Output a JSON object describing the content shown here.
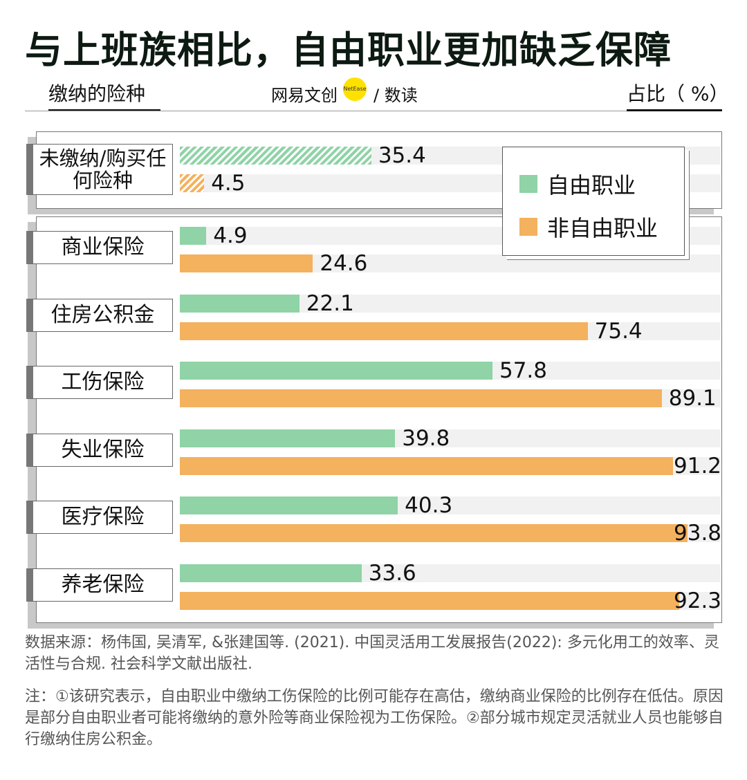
{
  "title": "与上班族相比，自由职业更加缺乏保障",
  "header": {
    "left_label": "缴纳的险种",
    "right_label": "占比（ %）",
    "brand_main": "网易文创",
    "brand_dot": "NetEase",
    "brand_tail": "/ 数读"
  },
  "colors": {
    "free": "#8fd3a6",
    "nonfree": "#f4b15e"
  },
  "chart_data": {
    "type": "bar",
    "orientation": "horizontal",
    "xlabel": "缴纳的险种",
    "ylabel": "占比（ %）",
    "xlim": [
      0,
      100
    ],
    "legend_position": "top-right",
    "grid": false,
    "categories": [
      "未缴纳/购买任何险种",
      "商业保险",
      "住房公积金",
      "工伤保险",
      "失业保险",
      "医疗保险",
      "养老保险"
    ],
    "series": [
      {
        "name": "自由职业",
        "values": [
          35.4,
          4.9,
          22.1,
          57.8,
          39.8,
          40.3,
          33.6
        ]
      },
      {
        "name": "非自由职业",
        "values": [
          4.5,
          24.6,
          75.4,
          89.1,
          91.2,
          93.8,
          92.3
        ]
      }
    ],
    "value_labels": {
      "free": [
        "35.4",
        "4.9",
        "22.1",
        "57.8",
        "39.8",
        "40.3",
        "33.6"
      ],
      "nonfree": [
        "4.5",
        "24.6",
        "75.4",
        "89.1",
        "91.2",
        "93.8",
        "92.3"
      ]
    }
  },
  "notes": {
    "source": "数据来源：杨伟国, 吴清军, &张建国等. (2021). 中国灵活用工发展报告(2022): 多元化用工的效率、灵活性与合规. 社会科学文献出版社.",
    "note": "注：①该研究表示，自由职业中缴纳工伤保险的比例可能存在高估，缴纳商业保险的比例存在低估。原因是部分自由职业者可能将缴纳的意外险等商业保险视为工伤保险。②部分城市规定灵活就业人员也能够自行缴纳住房公积金。"
  }
}
